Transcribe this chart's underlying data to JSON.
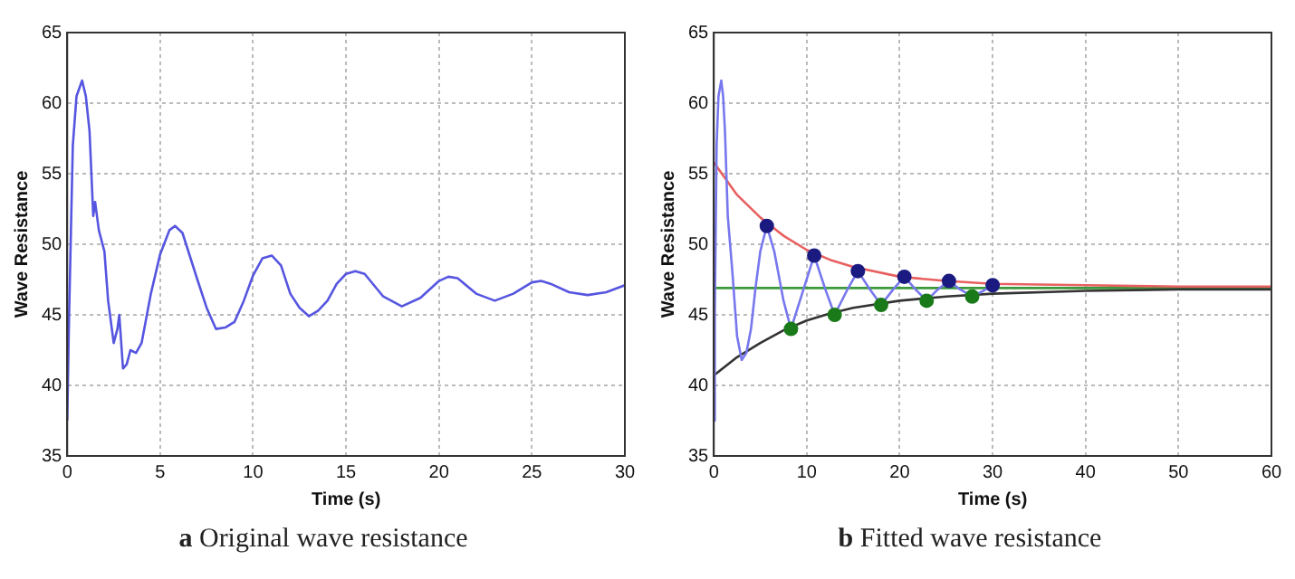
{
  "chart_data": [
    {
      "type": "line",
      "title": "a Original wave resistance",
      "xlabel": "Time (s)",
      "ylabel": "Wave Resistance",
      "xlim": [
        0,
        30
      ],
      "xticks": [
        0,
        5,
        10,
        15,
        20,
        25,
        30
      ],
      "ylim": [
        35,
        65
      ],
      "yticks": [
        35,
        40,
        45,
        50,
        55,
        60,
        65
      ],
      "grid": true,
      "legend": false,
      "marker": "none",
      "line_style": "solid",
      "series": [
        {
          "type": "line",
          "color": "#5555e0",
          "x": [
            0,
            0.1,
            0.3,
            0.5,
            0.8,
            1.0,
            1.2,
            1.4,
            1.5,
            1.7,
            2.0,
            2.2,
            2.5,
            2.7,
            2.8,
            3.0,
            3.2,
            3.4,
            3.7,
            4.0,
            4.5,
            5.0,
            5.5,
            5.8,
            6.2,
            7,
            7.5,
            8,
            8.5,
            9,
            9.5,
            10,
            10.5,
            11,
            11.5,
            12,
            12.5,
            13,
            13.5,
            14,
            14.5,
            15,
            15.5,
            16,
            17,
            18,
            19,
            20,
            20.5,
            21,
            22,
            23,
            24,
            25,
            25.5,
            26,
            27,
            28,
            29,
            30
          ],
          "values": [
            37.5,
            45,
            57,
            60.5,
            61.6,
            60.5,
            58,
            52,
            53,
            51,
            49.5,
            46,
            43,
            44,
            45,
            41.2,
            41.5,
            42.5,
            42.3,
            43,
            46.5,
            49.3,
            51,
            51.3,
            50.8,
            47.5,
            45.5,
            44,
            44.1,
            44.5,
            46,
            47.8,
            49,
            49.2,
            48.5,
            46.5,
            45.5,
            44.9,
            45.3,
            46,
            47.2,
            47.9,
            48.1,
            47.9,
            46.3,
            45.6,
            46.2,
            47.4,
            47.7,
            47.6,
            46.5,
            46.0,
            46.5,
            47.3,
            47.4,
            47.2,
            46.6,
            46.4,
            46.6,
            47.1
          ]
        }
      ]
    },
    {
      "type": "line",
      "title": "b Fitted wave resistance",
      "xlabel": "Time (s)",
      "ylabel": "Wave Resistance",
      "xlim": [
        0,
        60
      ],
      "xticks": [
        0,
        10,
        20,
        30,
        40,
        50,
        60
      ],
      "ylim": [
        35,
        65
      ],
      "yticks": [
        35,
        40,
        45,
        50,
        55,
        60,
        65
      ],
      "grid": true,
      "legend": false,
      "marker": "none",
      "line_style": "solid",
      "series": [
        {
          "type": "line",
          "color": "#7777ee",
          "x": [
            0,
            0.1,
            0.3,
            0.5,
            0.8,
            1.0,
            1.2,
            1.5,
            2.0,
            2.5,
            3.0,
            3.5,
            4.0,
            4.5,
            5.0,
            5.7,
            6.5,
            7.5,
            8.3,
            9.5,
            10.8,
            12,
            13,
            14.3,
            15.5,
            16.8,
            18,
            19.3,
            20.5,
            21.7,
            22.9,
            24.1,
            25.3,
            26.5,
            27.8,
            29,
            30
          ],
          "values": [
            37.5,
            45,
            57,
            60.5,
            61.6,
            60.5,
            58,
            52,
            48,
            43.5,
            41.8,
            42.3,
            44,
            47,
            49.5,
            51.3,
            49.5,
            46,
            44.0,
            46.5,
            49.2,
            46.8,
            45.0,
            46.7,
            48.1,
            46.8,
            45.7,
            46.8,
            47.7,
            46.8,
            46.0,
            46.8,
            47.4,
            46.8,
            46.3,
            46.7,
            47.1
          ]
        },
        {
          "type": "line",
          "color": "#e86060",
          "x": [
            0,
            2.5,
            5,
            7.5,
            10,
            12.5,
            15,
            20,
            25,
            30,
            40,
            50,
            60
          ],
          "values": [
            55.8,
            53.5,
            51.9,
            50.6,
            49.6,
            48.9,
            48.4,
            47.7,
            47.4,
            47.2,
            47.1,
            47.0,
            47.0
          ]
        },
        {
          "type": "line",
          "color": "#333333",
          "x": [
            0,
            2.5,
            5,
            7.5,
            10,
            12.5,
            15,
            20,
            25,
            30,
            40,
            50,
            60
          ],
          "values": [
            40.7,
            42.0,
            43.0,
            43.9,
            44.6,
            45.1,
            45.5,
            46.0,
            46.3,
            46.5,
            46.7,
            46.8,
            46.8
          ]
        },
        {
          "type": "line",
          "color": "#3a9a3a",
          "x": [
            0,
            60
          ],
          "values": [
            46.9,
            46.9
          ]
        },
        {
          "type": "scatter",
          "marker": "circle",
          "color": "#1a1a80",
          "x": [
            5.7,
            10.8,
            15.5,
            20.5,
            25.3,
            30
          ],
          "values": [
            51.3,
            49.2,
            48.1,
            47.7,
            47.4,
            47.1
          ]
        },
        {
          "type": "scatter",
          "marker": "circle",
          "color": "#1a7a1a",
          "x": [
            8.3,
            13,
            18,
            22.9,
            27.8
          ],
          "values": [
            44.0,
            45.0,
            45.7,
            46.0,
            46.3
          ]
        }
      ]
    }
  ]
}
